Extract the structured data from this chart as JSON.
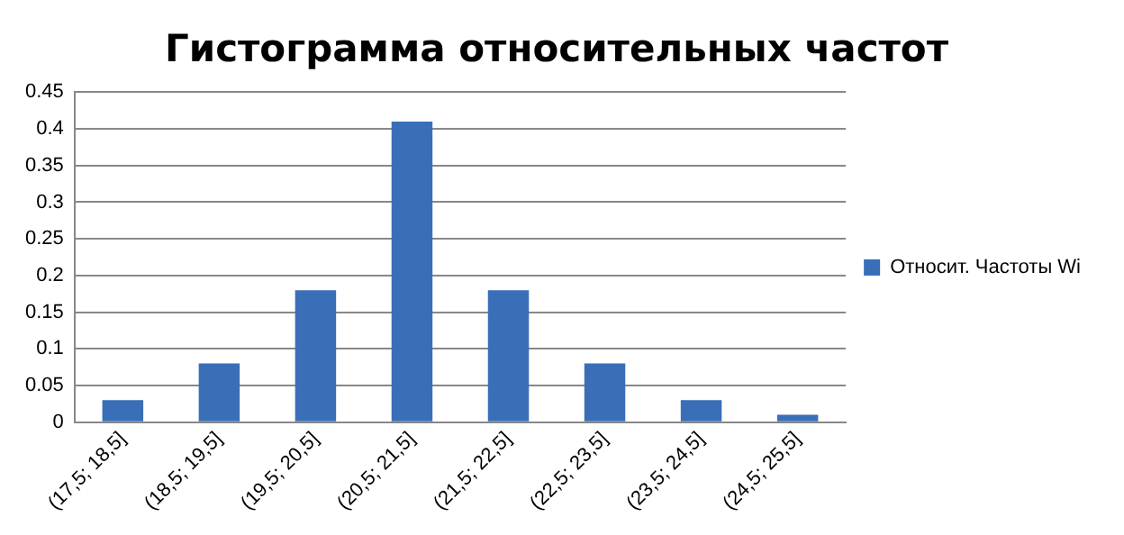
{
  "chart_data": {
    "type": "bar",
    "title": "Гистограмма относительных частот",
    "categories": [
      "(17,5; 18,5]",
      "(18,5; 19,5]",
      "(19,5; 20,5]",
      "(20,5; 21,5]",
      "(21,5; 22,5]",
      "(22,5; 23,5]",
      "(23,5; 24,5]",
      "(24,5; 25,5]"
    ],
    "series": [
      {
        "name": "Относит. Частоты Wi",
        "color": "#3a6fb8",
        "values": [
          0.03,
          0.08,
          0.18,
          0.41,
          0.18,
          0.08,
          0.03,
          0.01
        ]
      }
    ],
    "ylim": [
      0,
      0.45
    ],
    "yticks": [
      0,
      0.05,
      0.1,
      0.15,
      0.2,
      0.25,
      0.3,
      0.35,
      0.4,
      0.45
    ],
    "grid": "y",
    "legend": "right"
  }
}
